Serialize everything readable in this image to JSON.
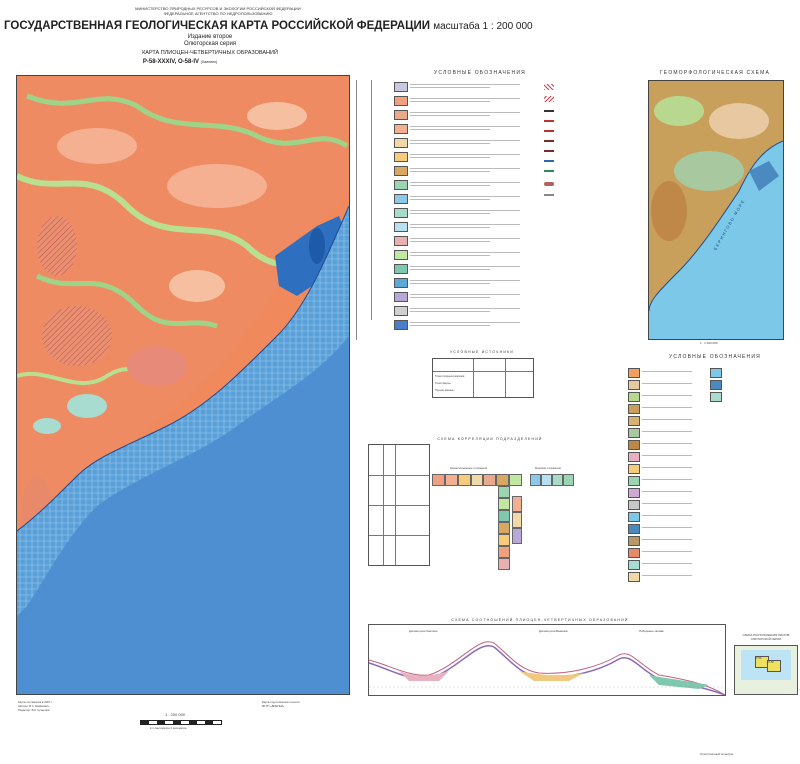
{
  "header": {
    "ministry_lines": [
      "МИНИСТЕРСТВО ПРИРОДНЫХ РЕСУРСОВ И ЭКОЛОГИИ РОССИЙСКОЙ ФЕДЕРАЦИИ",
      "ФЕДЕРАЛЬНОЕ АГЕНТСТВО ПО НЕДРОПОЛЬЗОВАНИЮ"
    ],
    "title": "ГОСУДАРСТВЕННАЯ ГЕОЛОГИЧЕСКАЯ КАРТА РОССИЙСКОЙ ФЕДЕРАЦИИ",
    "scale": "масштаба 1 : 200 000",
    "edition": "Издание второе",
    "series": "Олюторская серия",
    "map_name": "КАРТА ПЛИОЦЕН-ЧЕТВЕРТИЧНЫХ ОБРАЗОВАНИЙ",
    "sheet": "P-58-XXXIV, O-58-IV",
    "sheet_note": "(Хаилино)"
  },
  "legend": {
    "title": "УСЛОВНЫЕ  ОБОЗНАЧЕНИЯ",
    "colors": [
      "#c8c8e0",
      "#f0a080",
      "#e9a98c",
      "#f2b090",
      "#f0d8a8",
      "#f6cc7c",
      "#d8a860",
      "#9bd4b0",
      "#8cc8e8",
      "#a8dcc8",
      "#b8e0f0",
      "#e8b0b0",
      "#c0e8a0",
      "#7ec8b0",
      "#5aa8d8",
      "#b8a8d8",
      "#d0d0d0",
      "#4a7ec8"
    ],
    "right_items": [
      "Граница ареала",
      "Граница морских отложений",
      "Разломы",
      "Береговая линия",
      "Тектонические уступы",
      "Граница голоцена",
      "Палеорельеф"
    ]
  },
  "geomorph": {
    "title": "ГЕОМОРФОЛОГИЧЕСКАЯ СХЕМА",
    "scale": "1 : 1 000 000",
    "sea_label": "БЕРИНГОВО МОРЕ",
    "legend_title": "УСЛОВНЫЕ  ОБОЗНАЧЕНИЯ"
  },
  "small_table": {
    "title": "УСЛОВНЫЕ ИСТОЧНИКИ",
    "rows": [
      "Точки опорных разрезов",
      "Точки фауны",
      "Прочие данные"
    ]
  },
  "correlation": {
    "title": "СХЕМА КОРРЕЛЯЦИИ ПОДРАЗДЕЛЕНИЙ",
    "left_label": "Нерасчленённые отложения",
    "right_label": "Морские отложения"
  },
  "section": {
    "title": "СХЕМА СООТНОШЕНИЙ ПЛИОЦЕН-ЧЕТВЕРТИЧНЫХ ОБРАЗОВАНИЙ",
    "labels": [
      "Долина реки Хаилино",
      "Долина реки Вывенка",
      "Побережье залива"
    ]
  },
  "location": {
    "title": "СХЕМА РАСПОЛОЖЕНИЯ ЛИСТОВ ОЛЮТОРСКОЙ СЕРИИ",
    "sheets": [
      "P-58",
      "O-58"
    ]
  },
  "map": {
    "scale_label": "1 : 200 000",
    "scale_note": "в 1 сантиметре 2 километра"
  },
  "footer": {
    "left": [
      "Карта составлена в 2007 г.",
      "Авторы: В.С. Шеймович",
      "Редактор: В.К. Кузнецов"
    ],
    "center": [
      "Карта подготовлена к печати",
      "ФГУП «ВСЕГЕИ»"
    ],
    "right": [
      "Ответственный за выпуск"
    ]
  }
}
